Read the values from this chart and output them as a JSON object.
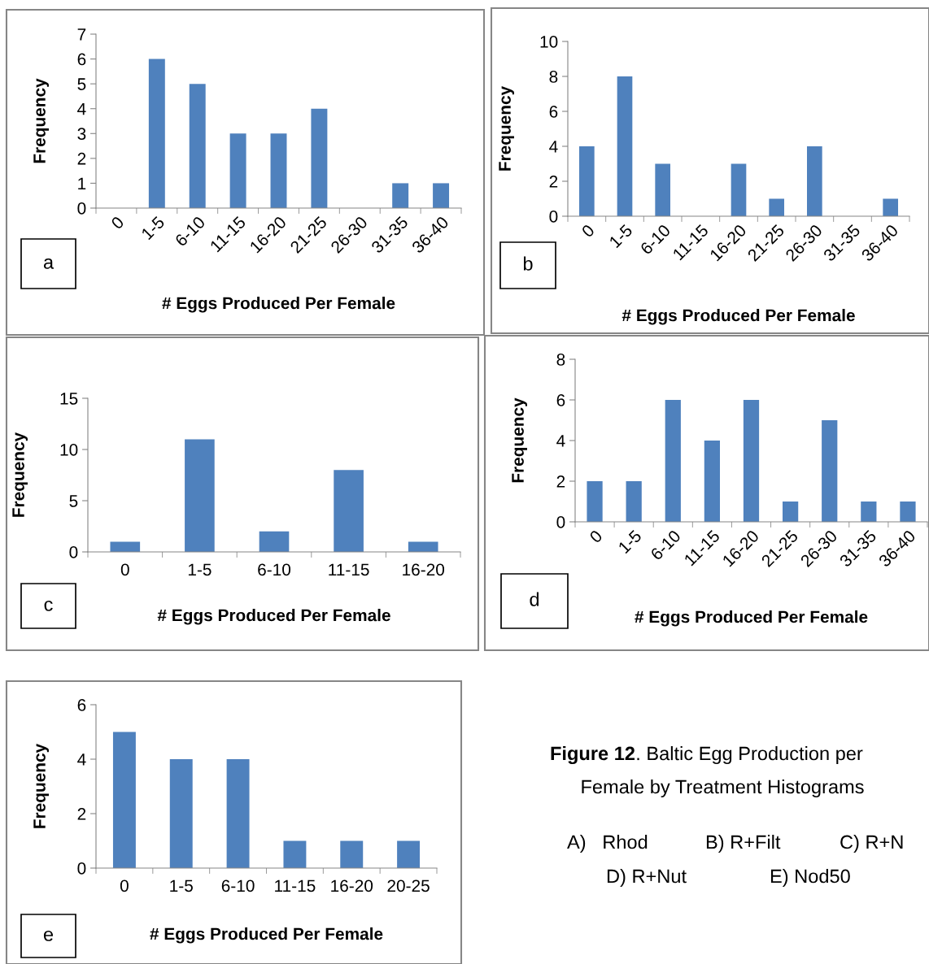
{
  "chart_data": [
    {
      "type": "bar",
      "xlabel": "# Eggs Produced Per Female",
      "ylabel": "Frequency",
      "categories": [
        "0",
        "1-5",
        "6-10",
        "11-15",
        "16-20",
        "21-25",
        "26-30",
        "31-35",
        "36-40"
      ],
      "values": [
        0,
        6,
        5,
        3,
        3,
        4,
        0,
        1,
        1
      ],
      "color": "#4f81bd",
      "ylim": [
        0,
        7
      ],
      "yticks": [
        0,
        1,
        2,
        3,
        4,
        5,
        6,
        7
      ],
      "grid": false,
      "legend": false,
      "annotations": [
        "a"
      ]
    },
    {
      "type": "bar",
      "xlabel": "# Eggs Produced Per Female",
      "ylabel": "Frequency",
      "categories": [
        "0",
        "1-5",
        "6-10",
        "11-15",
        "16-20",
        "21-25",
        "26-30",
        "31-35",
        "36-40"
      ],
      "values": [
        4,
        8,
        3,
        0,
        3,
        1,
        4,
        0,
        1
      ],
      "color": "#4f81bd",
      "ylim": [
        0,
        10
      ],
      "yticks": [
        0,
        2,
        4,
        6,
        8,
        10
      ],
      "grid": false,
      "legend": false,
      "annotations": [
        "b"
      ]
    },
    {
      "type": "bar",
      "xlabel": "# Eggs Produced Per Female",
      "ylabel": "Frequency",
      "categories": [
        "0",
        "1-5",
        "6-10",
        "11-15",
        "16-20"
      ],
      "values": [
        1,
        11,
        2,
        8,
        1
      ],
      "color": "#4f81bd",
      "ylim": [
        0,
        15
      ],
      "yticks": [
        0,
        5,
        10,
        15
      ],
      "grid": false,
      "legend": false,
      "annotations": [
        "c"
      ]
    },
    {
      "type": "bar",
      "xlabel": "# Eggs Produced Per Female",
      "ylabel": "Frequency",
      "categories": [
        "0",
        "1-5",
        "6-10",
        "11-15",
        "16-20",
        "21-25",
        "26-30",
        "31-35",
        "36-40"
      ],
      "values": [
        2,
        2,
        6,
        4,
        6,
        1,
        5,
        1,
        1
      ],
      "color": "#4f81bd",
      "ylim": [
        0,
        8
      ],
      "yticks": [
        0,
        2,
        4,
        6,
        8
      ],
      "grid": false,
      "legend": false,
      "annotations": [
        "d"
      ]
    },
    {
      "type": "bar",
      "xlabel": "# Eggs Produced Per Female",
      "ylabel": "Frequency",
      "categories": [
        "0",
        "1-5",
        "6-10",
        "11-15",
        "16-20",
        "20-25"
      ],
      "values": [
        5,
        4,
        4,
        1,
        1,
        1
      ],
      "color": "#4f81bd",
      "ylim": [
        0,
        6
      ],
      "yticks": [
        0,
        2,
        4,
        6
      ],
      "grid": false,
      "legend": false,
      "annotations": [
        "e"
      ]
    },
    {
      "type": "other",
      "title": "Figure 12",
      "annotations": [
        ". Baltic Egg Production per",
        "Female by Treatment Histograms",
        "A)   Rhod",
        "B) R+Filt",
        "C) R+N",
        "D) R+Nut",
        "E) Nod50"
      ]
    }
  ]
}
